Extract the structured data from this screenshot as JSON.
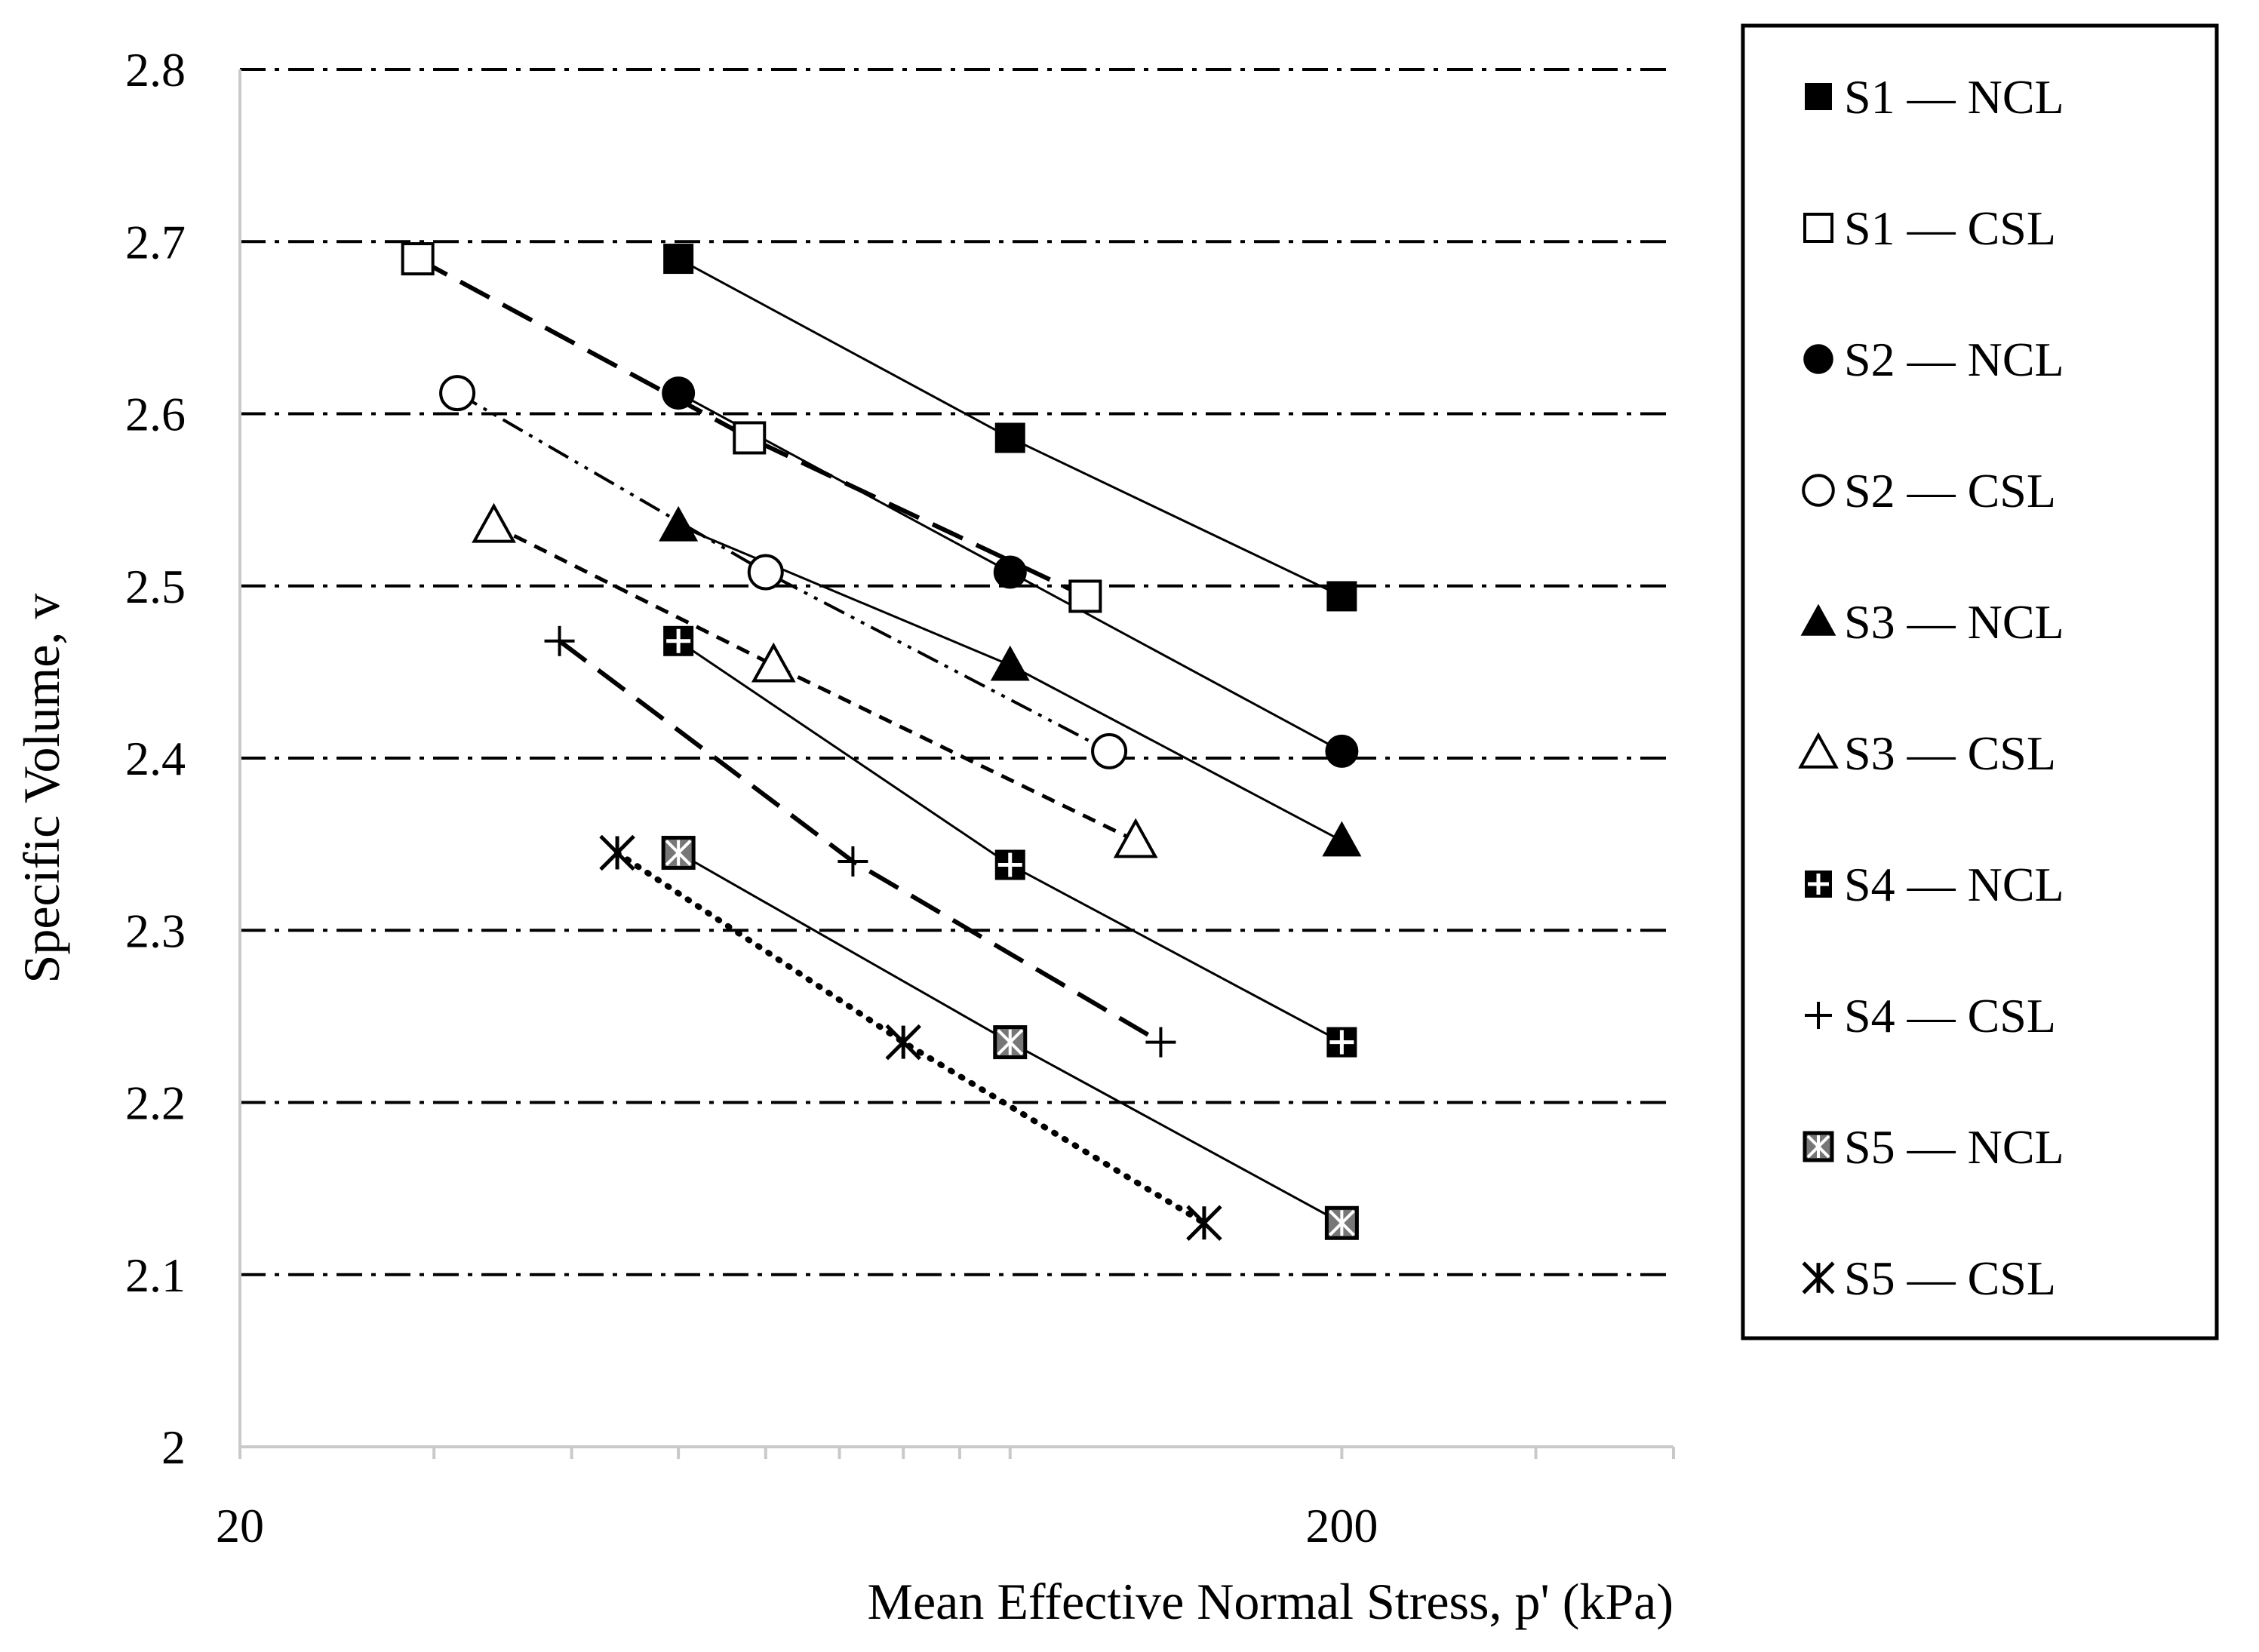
{
  "chart_data": {
    "type": "line",
    "xscale": "log",
    "xlabel": "Mean Effective Normal Stress, p' (kPa)",
    "ylabel": "Specific Volume, v",
    "xlim": [
      20,
      400
    ],
    "ylim": [
      2.0,
      2.8
    ],
    "xticks": [
      20,
      200
    ],
    "xtick_labels": [
      "20",
      "200"
    ],
    "yticks": [
      2.0,
      2.1,
      2.2,
      2.3,
      2.4,
      2.5,
      2.6,
      2.7,
      2.8
    ],
    "ytick_labels": [
      "2",
      "2.1",
      "2.2",
      "2.3",
      "2.4",
      "2.5",
      "2.6",
      "2.7",
      "2.8"
    ],
    "grid": "horizontal dash-dot",
    "legend_position": "right",
    "colors": {
      "line": "#000000",
      "marker_fill": "#000000",
      "marker_hatch_fill": "#777777",
      "background": "#ffffff"
    },
    "series": [
      {
        "name": "S1 — NCL",
        "marker": "filled-square",
        "line": "solid",
        "x": [
          50,
          100,
          200
        ],
        "y": [
          2.69,
          2.586,
          2.494
        ]
      },
      {
        "name": "S1 — CSL",
        "marker": "open-square",
        "line": "long-dash",
        "x": [
          29,
          58,
          117
        ],
        "y": [
          2.69,
          2.586,
          2.494
        ]
      },
      {
        "name": "S2 — NCL",
        "marker": "filled-circle",
        "line": "solid",
        "x": [
          50,
          100,
          200
        ],
        "y": [
          2.612,
          2.508,
          2.404
        ]
      },
      {
        "name": "S2 — CSL",
        "marker": "open-circle",
        "line": "dash-dot-dot",
        "x": [
          31.5,
          60,
          123
        ],
        "y": [
          2.612,
          2.508,
          2.404
        ]
      },
      {
        "name": "S3 — NCL",
        "marker": "filled-triangle",
        "line": "solid",
        "x": [
          50,
          100,
          200
        ],
        "y": [
          2.535,
          2.454,
          2.352
        ]
      },
      {
        "name": "S3 — CSL",
        "marker": "open-triangle",
        "line": "short-dash",
        "x": [
          34,
          61,
          130
        ],
        "y": [
          2.535,
          2.454,
          2.352
        ]
      },
      {
        "name": "S4 — NCL",
        "marker": "square-plus",
        "line": "solid",
        "x": [
          50,
          100,
          200
        ],
        "y": [
          2.468,
          2.338,
          2.235
        ]
      },
      {
        "name": "S4 — CSL",
        "marker": "plus",
        "line": "long-dash",
        "x": [
          39,
          72,
          137
        ],
        "y": [
          2.468,
          2.34,
          2.235
        ]
      },
      {
        "name": "S5 — NCL",
        "marker": "square-x",
        "line": "solid",
        "x": [
          50,
          100,
          200
        ],
        "y": [
          2.345,
          2.235,
          2.13
        ]
      },
      {
        "name": "S5 — CSL",
        "marker": "asterisk",
        "line": "dotted",
        "x": [
          44,
          80,
          150
        ],
        "y": [
          2.345,
          2.235,
          2.13
        ]
      }
    ]
  }
}
